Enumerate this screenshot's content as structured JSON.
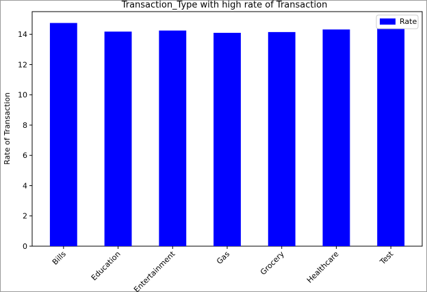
{
  "chart_data": {
    "type": "bar",
    "title": "Transaction_Type with high rate of Transaction",
    "xlabel": "",
    "ylabel": "Rate of Transaction",
    "categories": [
      "Bills",
      "Education",
      "Entertainment",
      "Gas",
      "Grocery",
      "Healthcare",
      "Test"
    ],
    "series": [
      {
        "name": "Rate",
        "values": [
          14.75,
          14.18,
          14.25,
          14.1,
          14.15,
          14.32,
          14.4
        ],
        "color": "#0000ff"
      }
    ],
    "ylim": [
      0,
      15.5
    ],
    "yticks": [
      0,
      2,
      4,
      6,
      8,
      10,
      12,
      14
    ],
    "grid": false,
    "legend_position": "top-right"
  }
}
